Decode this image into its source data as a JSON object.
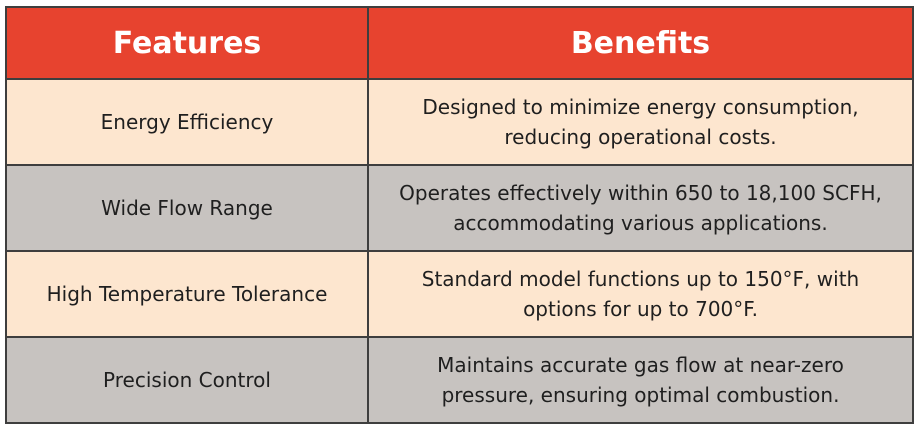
{
  "table": {
    "headers": {
      "features": "Features",
      "benefits": "Benefits"
    },
    "rows": [
      {
        "feature": "Energy Efficiency",
        "benefit_line1": "Designed to minimize energy consumption,",
        "benefit_line2": "reducing operational costs."
      },
      {
        "feature": "Wide Flow Range",
        "benefit_line1": "Operates effectively within 650 to 18,100 SCFH,",
        "benefit_line2": "accommodating various applications."
      },
      {
        "feature": "High Temperature Tolerance",
        "benefit_line1": "Standard model functions up to 150°F, with",
        "benefit_line2": "options for up to 700°F."
      },
      {
        "feature": "Precision Control",
        "benefit_line1": "Maintains accurate gas flow at near-zero",
        "benefit_line2": "pressure, ensuring optimal combustion."
      }
    ],
    "colors": {
      "header_bg": "#e7432f",
      "header_text": "#ffffff",
      "row_light": "#fde6cf",
      "row_dark": "#c7c3c0",
      "border": "#3e3e3e"
    }
  }
}
